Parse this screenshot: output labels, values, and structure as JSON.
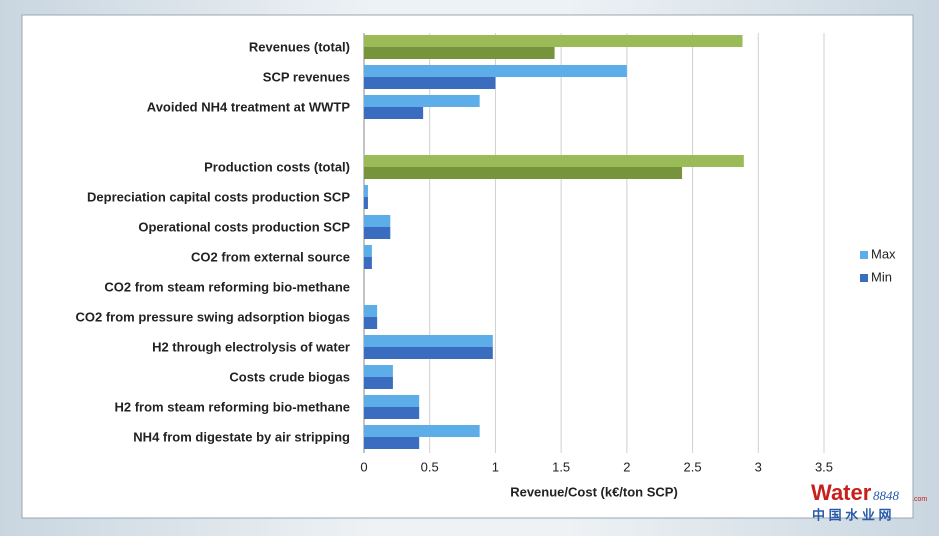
{
  "chart_data": {
    "type": "hbar",
    "x_label": "Revenue/Cost (k€/ton SCP)",
    "categories": [
      "Revenues (total)",
      "SCP revenues",
      "Avoided NH4 treatment at WWTP",
      null,
      "Production costs (total)",
      "Depreciation capital costs production SCP",
      "Operational costs production SCP",
      "CO2 from external source",
      "CO2 from steam reforming bio-methane",
      "CO2 from pressure swing adsorption biogas",
      "H2 through electrolysis of water",
      "Costs crude biogas",
      "H2 from steam reforming bio-methane",
      "NH4 from digestate by air stripping"
    ],
    "series": [
      {
        "name": "Max",
        "color": "#5dade8",
        "values": [
          2.88,
          2.0,
          0.88,
          null,
          2.89,
          0.03,
          0.2,
          0.06,
          0,
          0.1,
          0.98,
          0.22,
          0.42,
          0.88
        ],
        "colors": [
          "#9bbb59",
          "#5dade8",
          "#5dade8",
          null,
          "#9bbb59",
          "#5dade8",
          "#5dade8",
          "#5dade8",
          "#5dade8",
          "#5dade8",
          "#5dade8",
          "#5dade8",
          "#5dade8",
          "#5dade8"
        ]
      },
      {
        "name": "Min",
        "color": "#3a6cc0",
        "values": [
          1.45,
          1.0,
          0.45,
          null,
          2.42,
          0.03,
          0.2,
          0.06,
          0,
          0.1,
          0.98,
          0.22,
          0.42,
          0.42
        ],
        "colors": [
          "#77933c",
          "#3a6cc0",
          "#3a6cc0",
          null,
          "#77933c",
          "#3a6cc0",
          "#3a6cc0",
          "#3a6cc0",
          "#3a6cc0",
          "#3a6cc0",
          "#3a6cc0",
          "#3a6cc0",
          "#3a6cc0",
          "#3a6cc0"
        ]
      }
    ],
    "xlim": [
      0,
      3.5
    ],
    "xticks": [
      0,
      0.5,
      1,
      1.5,
      2,
      2.5,
      3,
      3.5
    ],
    "grid": true,
    "legend": "right"
  },
  "watermark": {
    "brand": "Water",
    "number": "8848",
    "domain": ".com",
    "chinese": "中 国 水 业 网"
  }
}
